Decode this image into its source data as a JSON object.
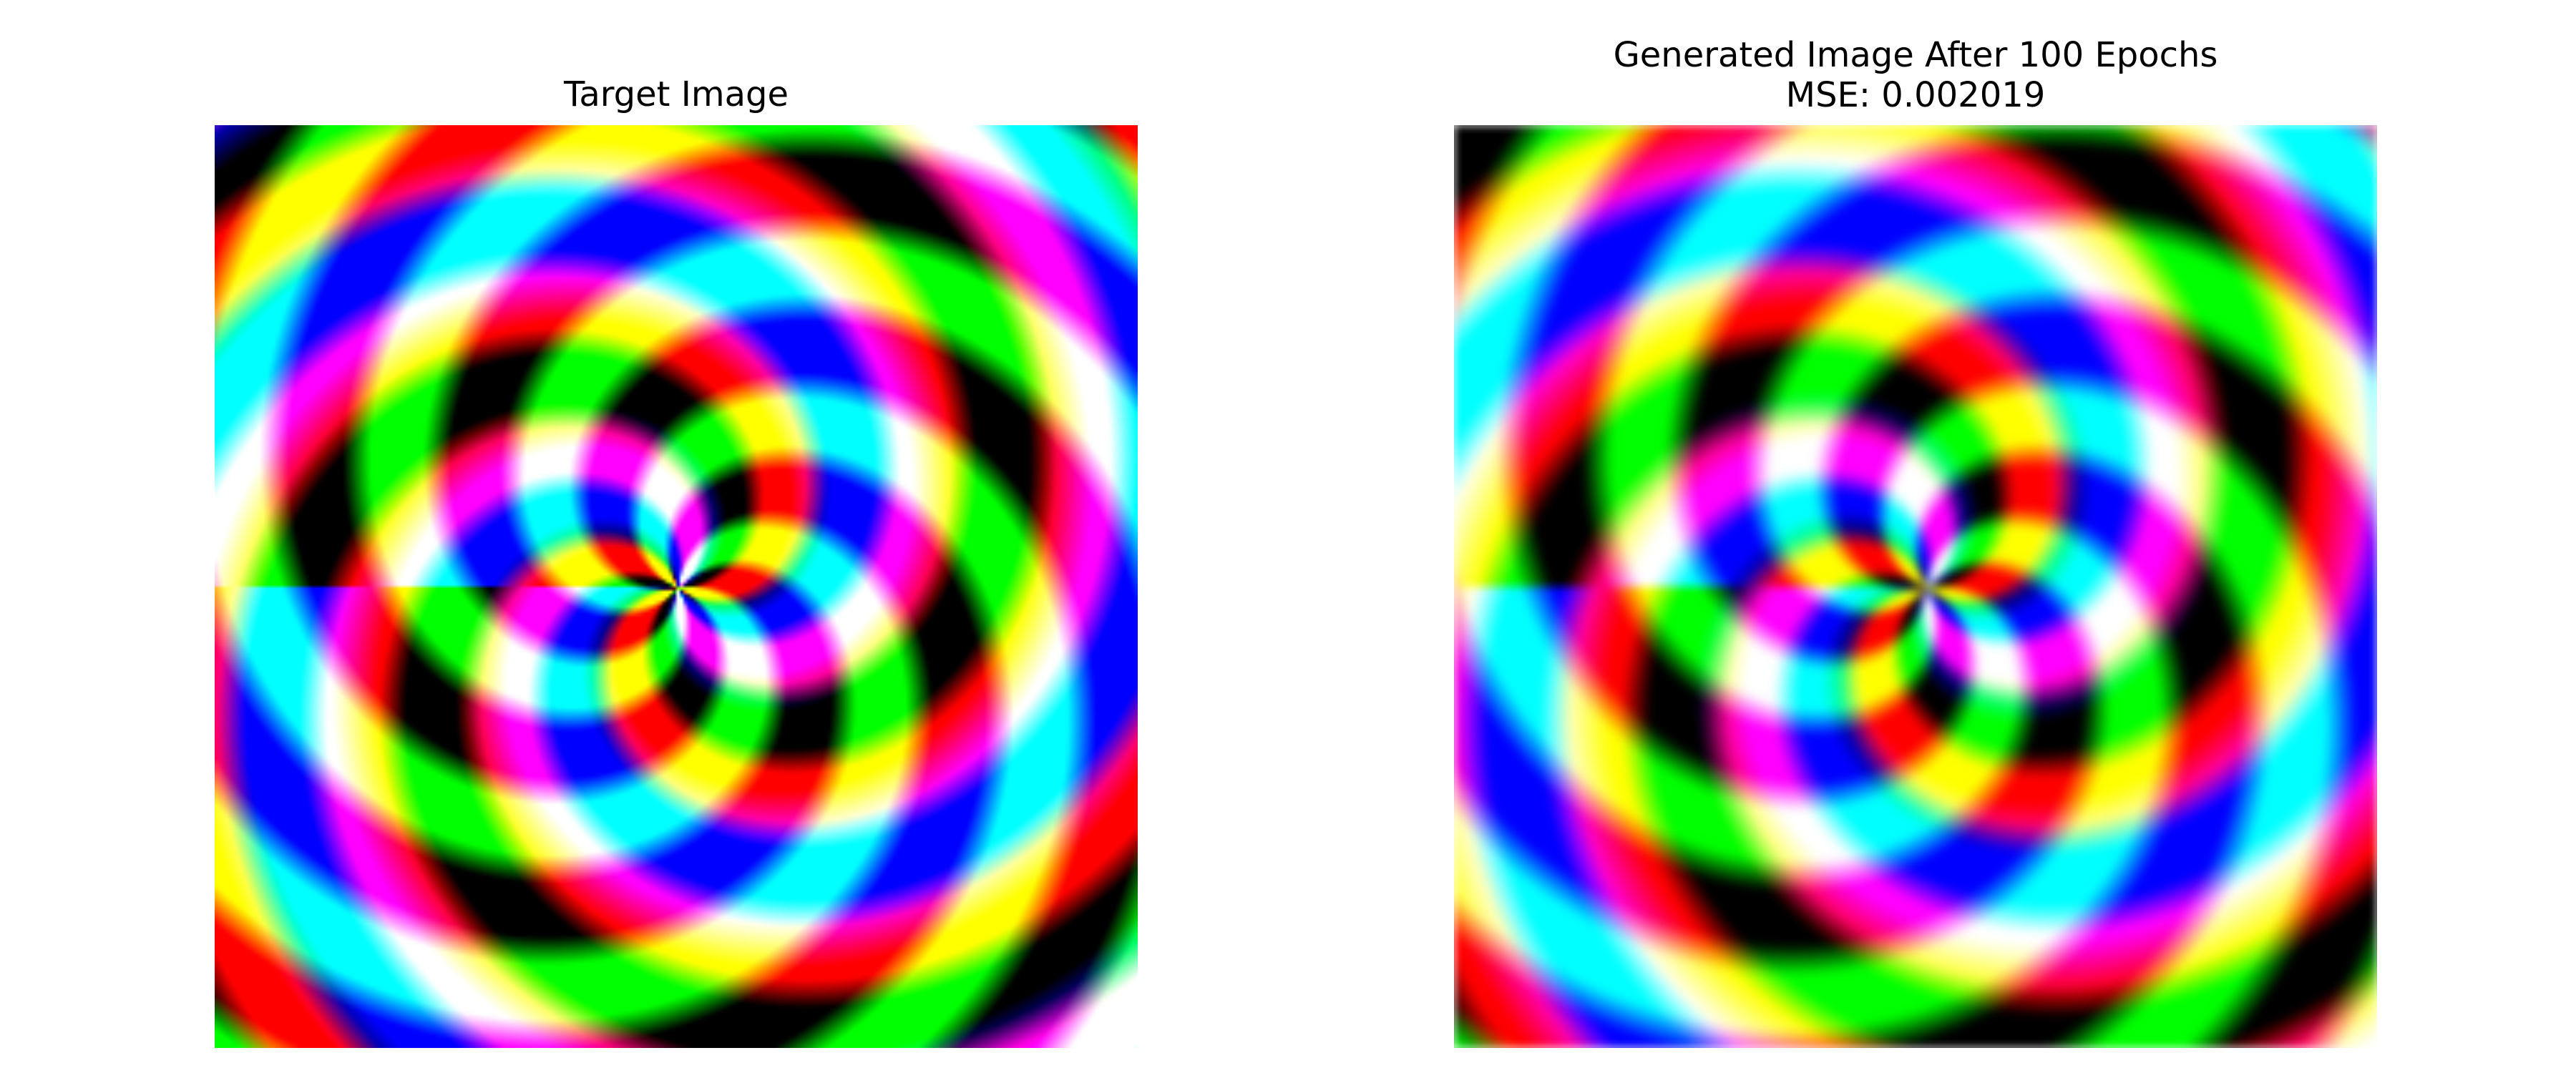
{
  "left_panel": {
    "title": "Target Image"
  },
  "right_panel": {
    "title_line1": "Generated Image After 100 Epochs",
    "title_line2": "MSE: 0.002019"
  },
  "colors": {
    "background": "#ffffff",
    "text": "#000000"
  }
}
